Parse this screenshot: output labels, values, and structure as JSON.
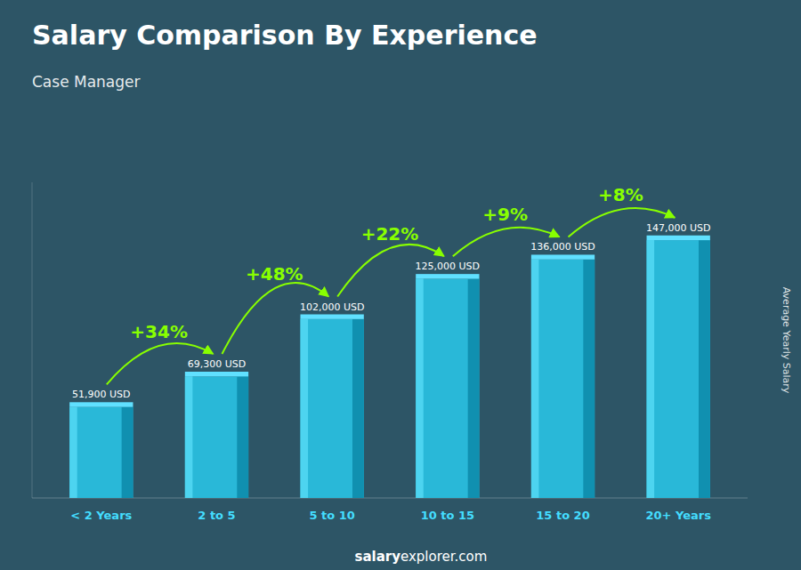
{
  "chart_data": {
    "type": "bar",
    "title": "Salary Comparison By Experience",
    "subtitle": "Case Manager",
    "y_label": "Average Yearly Salary",
    "footer": [
      "salary",
      "explorer.com"
    ],
    "categories": [
      "< 2 Years",
      "2 to 5",
      "5 to 10",
      "10 to 15",
      "15 to 20",
      "20+ Years"
    ],
    "values": [
      51900,
      69300,
      102000,
      125000,
      136000,
      147000
    ],
    "value_labels": [
      "51,900 USD",
      "69,300 USD",
      "102,000 USD",
      "125,000 USD",
      "136,000 USD",
      "147,000 USD"
    ],
    "annotations": [
      "+34%",
      "+48%",
      "+22%",
      "+9%",
      "+8%"
    ],
    "color": "#29b8d8",
    "ylim": [
      0,
      180000
    ],
    "data_labels": true,
    "tick_labels": "x",
    "grid": false
  }
}
